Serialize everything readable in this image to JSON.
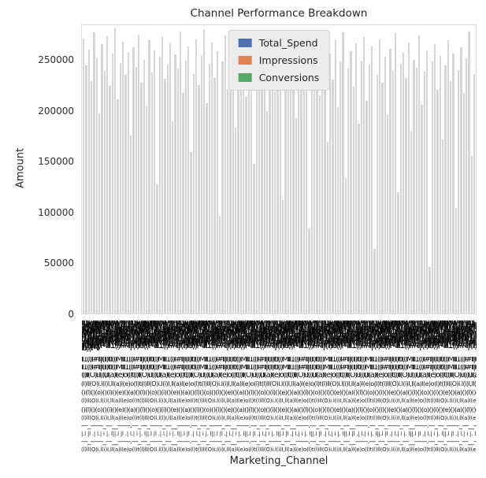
{
  "title": "Channel Performance Breakdown",
  "yaxis": {
    "label": "Amount",
    "tick_labels": [
      "0",
      "50000",
      "100000",
      "150000",
      "200000",
      "250000"
    ]
  },
  "xaxis": {
    "label": "Marketing_Channel",
    "tick_labels_legible": false,
    "smudge": {
      "dense": "Il1(l)I#lI|l(Il)ltI(l)Ml",
      "mush": "(l)ll(O)i.l(i)I,ll(a)l(e)o(l)t",
      "round": "()(l)()(o)()(i)()(e)()(a)",
      "dash": "—_——_—__——.—_",
      "ticks": "|.l |l .| l.| i |. l|"
    }
  },
  "legend": {
    "items": [
      {
        "label": "Total_Spend",
        "color": "#4C72B0"
      },
      {
        "label": "Impressions",
        "color": "#DD8452"
      },
      {
        "label": "Conversions",
        "color": "#55A868"
      }
    ]
  },
  "bar_color": "#d6d6d6",
  "chart_data": {
    "type": "bar",
    "title": "Channel Performance Breakdown",
    "xlabel": "Marketing_Channel",
    "ylabel": "Amount",
    "ylim": [
      0,
      285000
    ],
    "yticks": [
      0,
      50000,
      100000,
      150000,
      200000,
      250000
    ],
    "grid": false,
    "legend_position": "upper center",
    "series_names": [
      "Total_Spend",
      "Impressions",
      "Conversions"
    ],
    "values_note": "Hundreds of per-channel grouped bars are rendered so densely that individual bars and x tick labels are illegible; values below are estimated bar-top heights read from the axis.",
    "values_estimated": true,
    "values": [
      272000,
      245000,
      261000,
      230000,
      278000,
      252000,
      198000,
      266000,
      240000,
      274000,
      225000,
      257000,
      282000,
      212000,
      248000,
      269000,
      236000,
      258000,
      176000,
      263000,
      244000,
      276000,
      228000,
      251000,
      205000,
      270000,
      238000,
      260000,
      128000,
      254000,
      273000,
      232000,
      246000,
      267000,
      190000,
      256000,
      242000,
      279000,
      218000,
      250000,
      264000,
      160000,
      237000,
      271000,
      226000,
      255000,
      281000,
      208000,
      247000,
      268000,
      233000,
      259000,
      96000,
      249000,
      275000,
      222000,
      243000,
      262000,
      184000,
      253000,
      234000,
      277000,
      214000,
      245000,
      266000,
      148000,
      239000,
      258000,
      229000,
      272000,
      200000,
      251000,
      280000,
      220000,
      246000,
      263000,
      112000,
      241000,
      269000,
      235000,
      256000,
      193000,
      274000,
      227000,
      248000,
      265000,
      84000,
      252000,
      238000,
      276000,
      216000,
      244000,
      261000,
      170000,
      257000,
      231000,
      270000,
      204000,
      249000,
      278000,
      134000,
      242000,
      259000,
      224000,
      267000,
      188000,
      250000,
      273000,
      210000,
      246000,
      264000,
      64000,
      236000,
      271000,
      228000,
      254000,
      196000,
      262000,
      240000,
      277000,
      120000,
      247000,
      258000,
      233000,
      268000,
      180000,
      251000,
      243000,
      275000,
      206000,
      239000,
      260000,
      46000,
      249000,
      266000,
      221000,
      255000,
      172000,
      245000,
      270000,
      230000,
      257000,
      104000,
      241000,
      263000,
      218000,
      252000,
      279000,
      156000,
      237000
    ]
  }
}
